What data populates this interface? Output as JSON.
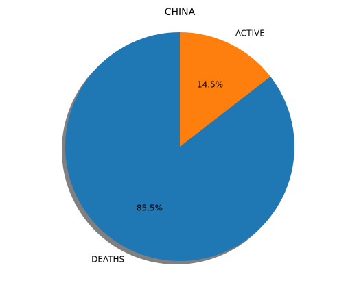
{
  "chart_data": {
    "type": "pie",
    "title": "CHINA",
    "slices": [
      {
        "label": "DEATHS",
        "value": 85.5,
        "pct_label": "85.5%",
        "color": "#1f77b4"
      },
      {
        "label": "ACTIVE",
        "value": 14.5,
        "pct_label": "14.5%",
        "color": "#ff7f0e"
      }
    ],
    "start_angle_deg": 90,
    "direction": "counterclockwise",
    "shadow": true,
    "shadow_color": "#808080"
  }
}
